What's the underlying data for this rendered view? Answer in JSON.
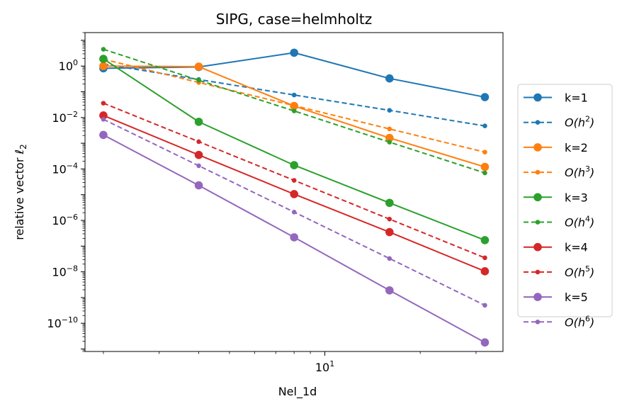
{
  "chart_data": {
    "type": "line",
    "title": "SIPG, case=helmholtz",
    "xlabel": "Nel_1d",
    "ylabel": "relative vector ℓ",
    "ylabel_sub": "2",
    "xscale": "log",
    "yscale": "log",
    "xlim": [
      1.75,
      36.5
    ],
    "ylim": [
      8e-12,
      20
    ],
    "x": [
      2,
      4,
      8,
      16,
      32
    ],
    "xtick_labels": [
      {
        "value": 10,
        "base": "10",
        "exp": "1"
      }
    ],
    "ytick_labels": [
      {
        "value": 1,
        "base": "10",
        "exp": "0"
      },
      {
        "value": 0.01,
        "base": "10",
        "exp": "−2"
      },
      {
        "value": 0.0001,
        "base": "10",
        "exp": "−4"
      },
      {
        "value": 1e-06,
        "base": "10",
        "exp": "−6"
      },
      {
        "value": 1e-08,
        "base": "10",
        "exp": "−8"
      },
      {
        "value": 1e-10,
        "base": "10",
        "exp": "−10"
      }
    ],
    "legend_position": "right-outside",
    "series": [
      {
        "name": "k=1",
        "style": "solid",
        "color": "#1f77b4",
        "values": [
          0.82,
          0.92,
          3.3,
          0.33,
          0.062
        ]
      },
      {
        "name": "O(h²)",
        "legend_main": "O(h",
        "legend_sup": "2",
        "legend_tail": ")",
        "style": "dashed",
        "color": "#1f77b4",
        "values": [
          1.2,
          0.3,
          0.075,
          0.019,
          0.0047
        ]
      },
      {
        "name": "k=2",
        "style": "solid",
        "color": "#ff7f0e",
        "values": [
          1.0,
          0.95,
          0.028,
          0.0016,
          0.00012
        ]
      },
      {
        "name": "O(h³)",
        "legend_main": "O(h",
        "legend_sup": "3",
        "legend_tail": ")",
        "style": "dashed",
        "color": "#ff7f0e",
        "values": [
          1.85,
          0.23,
          0.029,
          0.0036,
          0.00045
        ]
      },
      {
        "name": "k=3",
        "style": "solid",
        "color": "#2ca02c",
        "values": [
          1.9,
          0.0068,
          0.00014,
          4.8e-06,
          1.7e-07
        ]
      },
      {
        "name": "O(h⁴)",
        "legend_main": "O(h",
        "legend_sup": "4",
        "legend_tail": ")",
        "style": "dashed",
        "color": "#2ca02c",
        "values": [
          4.5,
          0.28,
          0.018,
          0.0011,
          7e-05
        ]
      },
      {
        "name": "k=4",
        "style": "solid",
        "color": "#d62728",
        "values": [
          0.012,
          0.00035,
          1.05e-05,
          3.5e-07,
          1.05e-08
        ]
      },
      {
        "name": "O(h⁵)",
        "legend_main": "O(h",
        "legend_sup": "5",
        "legend_tail": ")",
        "style": "dashed",
        "color": "#d62728",
        "values": [
          0.036,
          0.00115,
          3.6e-05,
          1.12e-06,
          3.5e-08
        ]
      },
      {
        "name": "k=5",
        "style": "solid",
        "color": "#9467bd",
        "values": [
          0.0021,
          2.3e-05,
          2.2e-07,
          1.9e-09,
          1.8e-11
        ]
      },
      {
        "name": "O(h⁶)",
        "legend_main": "O(h",
        "legend_sup": "6",
        "legend_tail": ")",
        "style": "dashed",
        "color": "#9467bd",
        "values": [
          0.0085,
          0.000133,
          2.1e-06,
          3.3e-08,
          5e-10
        ]
      }
    ]
  }
}
